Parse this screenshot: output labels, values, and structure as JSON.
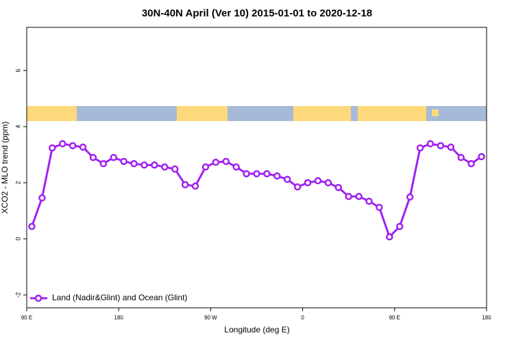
{
  "chart_data": {
    "type": "line",
    "title": "30N-40N April (Ver 10)   2015-01-01 to 2020-12-18",
    "xlabel": "Longitude (deg E)",
    "ylabel": "XCO2 - MLO trend (ppm)",
    "x": [
      95,
      105,
      115,
      125,
      135,
      145,
      155,
      165,
      175,
      185,
      195,
      205,
      215,
      225,
      235,
      245,
      255,
      265,
      275,
      285,
      295,
      305,
      315,
      325,
      335,
      345,
      355,
      365,
      375,
      385,
      395,
      405,
      415,
      425,
      435,
      445,
      455,
      465,
      475,
      485,
      495,
      505,
      515,
      525,
      535
    ],
    "series": [
      {
        "name": "Land (Nadir&Glint) and Ocean (Glint)",
        "color": "#a020f0",
        "values": [
          0.44,
          1.46,
          3.24,
          3.39,
          3.32,
          3.27,
          2.9,
          2.68,
          2.9,
          2.76,
          2.68,
          2.63,
          2.63,
          2.56,
          2.49,
          1.93,
          1.88,
          2.56,
          2.73,
          2.76,
          2.56,
          2.32,
          2.32,
          2.32,
          2.24,
          2.12,
          1.85,
          2.0,
          2.07,
          2.0,
          1.83,
          1.51,
          1.51,
          1.34,
          1.12,
          0.07,
          0.44,
          1.49,
          3.24,
          3.39,
          3.32,
          3.27,
          2.9,
          2.68,
          2.93
        ]
      }
    ],
    "xlim": [
      90,
      540
    ],
    "xticks": [
      {
        "value": 90,
        "label": "90 E"
      },
      {
        "value": 180,
        "label": "180"
      },
      {
        "value": 270,
        "label": "90 W"
      },
      {
        "value": 360,
        "label": "0"
      },
      {
        "value": 450,
        "label": "90 E"
      },
      {
        "value": 540,
        "label": "180"
      }
    ],
    "ylim": [
      -2.46,
      7.54
    ],
    "yticks": [
      -2,
      0,
      2,
      4,
      6
    ],
    "legend": "bottom-left"
  }
}
